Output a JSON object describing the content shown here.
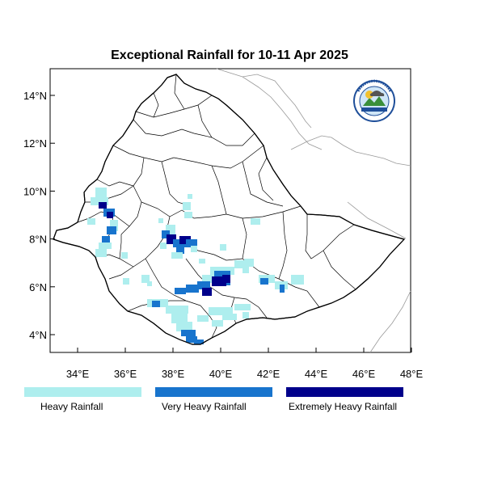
{
  "title": "Exceptional Rainfall for 10-11 Apr 2025",
  "axes": {
    "lat_ticks": [
      {
        "value": 14,
        "label": "14°N"
      },
      {
        "value": 12,
        "label": "12°N"
      },
      {
        "value": 10,
        "label": "10°N"
      },
      {
        "value": 8,
        "label": "8°N"
      },
      {
        "value": 6,
        "label": "6°N"
      },
      {
        "value": 4,
        "label": "4°N"
      }
    ],
    "lon_ticks": [
      {
        "value": 34,
        "label": "34°E"
      },
      {
        "value": 36,
        "label": "36°E"
      },
      {
        "value": 38,
        "label": "38°E"
      },
      {
        "value": 40,
        "label": "40°E"
      },
      {
        "value": 42,
        "label": "42°E"
      },
      {
        "value": 44,
        "label": "44°E"
      },
      {
        "value": 46,
        "label": "46°E"
      },
      {
        "value": 48,
        "label": "48°E"
      }
    ],
    "lon_range": [
      32.8,
      48.2
    ],
    "lat_range": [
      3.2,
      15.0
    ]
  },
  "legend": [
    {
      "label": "Heavy Rainfall",
      "color": "#aeeeee"
    },
    {
      "label": "Very Heavy Rainfall",
      "color": "#1874cd"
    },
    {
      "label": "Extremely Heavy Rainfall",
      "color": "#00008b"
    }
  ],
  "logo": {
    "icon": "ethiopian-meteorology-institute-logo"
  },
  "colors": {
    "heavy": "#aeeeee",
    "very_heavy": "#1874cd",
    "extreme": "#00008b",
    "boundary": "#000000",
    "neighbor": "#999999"
  }
}
